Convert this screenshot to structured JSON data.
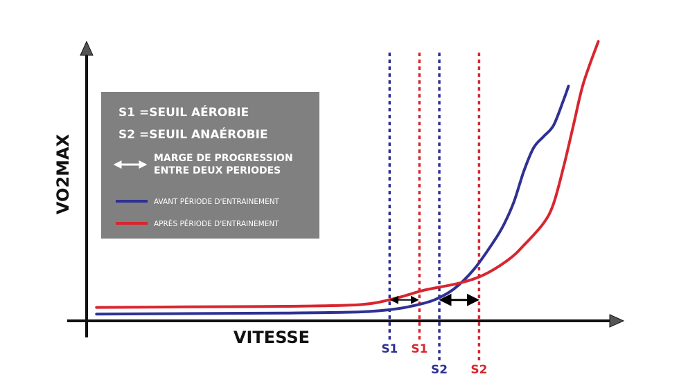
{
  "chart_data": {
    "type": "line",
    "xlabel": "VITESSE",
    "ylabel": "VO2MAX",
    "legend": {
      "placement": "top-left",
      "definitions": [
        "S1 =SEUIL AÉROBIE",
        "S2 =SEUIL ANAÉROBIE"
      ],
      "arrow_note": [
        "MARGE DE PROGRESSION",
        "ENTRE DEUX PERIODES"
      ],
      "entries": [
        {
          "label": "AVANT PÉRIODE D'ENTRAINEMENT",
          "color": "#2e3192"
        },
        {
          "label": "APRÈS PÉRIODE D'ENTRAINEMENT",
          "color": "#d7262f"
        }
      ]
    },
    "series": [
      {
        "color": "#2e3192",
        "points": [
          [
            2,
            2.4
          ],
          [
            20,
            2.6
          ],
          [
            40,
            2.8
          ],
          [
            55,
            3.2
          ],
          [
            62,
            4.2
          ],
          [
            66,
            5.5
          ],
          [
            70,
            7.5
          ],
          [
            74,
            11.5
          ],
          [
            78,
            18.5
          ],
          [
            82,
            28.5
          ],
          [
            84,
            34.5
          ],
          [
            86,
            42.5
          ],
          [
            88,
            53.5
          ],
          [
            90,
            62
          ],
          [
            92,
            66
          ],
          [
            94,
            70
          ],
          [
            96,
            79
          ],
          [
            97,
            84
          ]
        ]
      },
      {
        "color": "#d7262f",
        "points": [
          [
            2,
            4.8
          ],
          [
            20,
            5.0
          ],
          [
            40,
            5.2
          ],
          [
            55,
            5.8
          ],
          [
            62,
            8.0
          ],
          [
            68,
            11
          ],
          [
            75,
            13.5
          ],
          [
            80,
            16.5
          ],
          [
            85,
            22
          ],
          [
            88,
            27
          ],
          [
            92,
            35
          ],
          [
            94,
            42
          ],
          [
            96,
            55
          ],
          [
            98,
            70
          ],
          [
            100,
            85
          ],
          [
            103,
            100
          ]
        ]
      }
    ],
    "thresholds": [
      {
        "label": "S1",
        "x": 61,
        "color": "#2e3192",
        "line_top": 96
      },
      {
        "label": "S1",
        "x": 67,
        "color": "#d7262f",
        "line_top": 96
      },
      {
        "label": "S2",
        "x": 71,
        "color": "#2e3192",
        "line_top": 96
      },
      {
        "label": "S2",
        "x": 79,
        "color": "#d7262f",
        "line_top": 96
      }
    ],
    "progress_arrows": [
      {
        "from": 61,
        "to": 67,
        "y": 7.5
      },
      {
        "from": 71,
        "to": 79,
        "y": 7.5
      }
    ],
    "grid": false
  }
}
